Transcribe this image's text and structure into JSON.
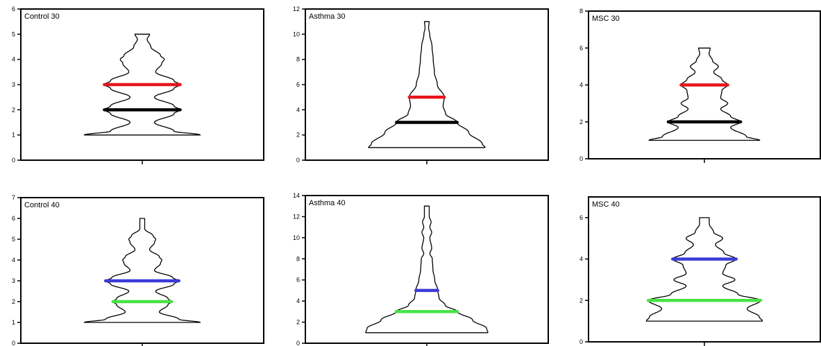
{
  "chart_data": [
    {
      "type": "violin",
      "title": "Control 30",
      "ylim": [
        0,
        6
      ],
      "yticks": [
        0,
        1,
        2,
        3,
        4,
        5,
        6
      ],
      "violin": {
        "min": 1,
        "max": 5,
        "width_profile": [
          [
            1,
            0.95
          ],
          [
            1.15,
            0.52
          ],
          [
            1.5,
            0.2
          ],
          [
            1.85,
            0.52
          ],
          [
            2.0,
            0.62
          ],
          [
            2.15,
            0.52
          ],
          [
            2.5,
            0.2
          ],
          [
            2.85,
            0.52
          ],
          [
            3.0,
            0.62
          ],
          [
            3.15,
            0.52
          ],
          [
            3.5,
            0.22
          ],
          [
            3.85,
            0.32
          ],
          [
            4.0,
            0.36
          ],
          [
            4.15,
            0.3
          ],
          [
            4.5,
            0.14
          ],
          [
            4.8,
            0.08
          ],
          [
            5.0,
            0.12
          ]
        ]
      },
      "lines": [
        {
          "value": 3,
          "color": "#e8141b"
        },
        {
          "value": 2,
          "color": "#000000"
        }
      ]
    },
    {
      "type": "violin",
      "title": "Asthma 30",
      "ylim": [
        0,
        12
      ],
      "yticks": [
        0,
        2,
        4,
        6,
        8,
        10,
        12
      ],
      "violin": {
        "min": 1,
        "max": 11,
        "width_profile": [
          [
            1,
            1.0
          ],
          [
            1.3,
            0.95
          ],
          [
            2.2,
            0.72
          ],
          [
            3.0,
            0.52
          ],
          [
            3.7,
            0.32
          ],
          [
            4.3,
            0.28
          ],
          [
            5.0,
            0.3
          ],
          [
            6.0,
            0.18
          ],
          [
            7.0,
            0.13
          ],
          [
            8.0,
            0.11
          ],
          [
            9.0,
            0.09
          ],
          [
            10.0,
            0.05
          ],
          [
            10.5,
            0.03
          ],
          [
            11.0,
            0.04
          ]
        ]
      },
      "lines": [
        {
          "value": 5,
          "color": "#e8141b"
        },
        {
          "value": 3,
          "color": "#000000"
        }
      ]
    },
    {
      "type": "violin",
      "title": "MSC 30",
      "ylim": [
        0,
        8
      ],
      "yticks": [
        0,
        2,
        4,
        6,
        8
      ],
      "violin": {
        "min": 1,
        "max": 6,
        "width_profile": [
          [
            1,
            0.95
          ],
          [
            1.2,
            0.72
          ],
          [
            1.7,
            0.45
          ],
          [
            2.0,
            0.62
          ],
          [
            2.3,
            0.45
          ],
          [
            2.7,
            0.28
          ],
          [
            3.0,
            0.4
          ],
          [
            3.3,
            0.28
          ],
          [
            3.7,
            0.3
          ],
          [
            4.0,
            0.4
          ],
          [
            4.3,
            0.3
          ],
          [
            4.7,
            0.16
          ],
          [
            5.0,
            0.24
          ],
          [
            5.3,
            0.14
          ],
          [
            5.7,
            0.08
          ],
          [
            6.0,
            0.1
          ]
        ]
      },
      "lines": [
        {
          "value": 4,
          "color": "#e8141b"
        },
        {
          "value": 2,
          "color": "#000000"
        }
      ]
    },
    {
      "type": "violin",
      "title": "Control 40",
      "ylim": [
        0,
        7
      ],
      "yticks": [
        0,
        1,
        2,
        3,
        4,
        5,
        6,
        7
      ],
      "violin": {
        "min": 1,
        "max": 6,
        "width_profile": [
          [
            1,
            0.95
          ],
          [
            1.15,
            0.6
          ],
          [
            1.5,
            0.28
          ],
          [
            1.85,
            0.42
          ],
          [
            2.0,
            0.48
          ],
          [
            2.15,
            0.42
          ],
          [
            2.5,
            0.22
          ],
          [
            2.85,
            0.52
          ],
          [
            3.0,
            0.6
          ],
          [
            3.15,
            0.5
          ],
          [
            3.5,
            0.2
          ],
          [
            3.85,
            0.3
          ],
          [
            4.0,
            0.32
          ],
          [
            4.15,
            0.28
          ],
          [
            4.5,
            0.12
          ],
          [
            4.85,
            0.2
          ],
          [
            5.0,
            0.22
          ],
          [
            5.15,
            0.18
          ],
          [
            5.5,
            0.04
          ],
          [
            6.0,
            0.04
          ]
        ]
      },
      "lines": [
        {
          "value": 3,
          "color": "#3b3bd6"
        },
        {
          "value": 2,
          "color": "#46e346"
        }
      ]
    },
    {
      "type": "violin",
      "title": "Asthma 40",
      "ylim": [
        0,
        14
      ],
      "yticks": [
        0,
        2,
        4,
        6,
        8,
        10,
        12,
        14
      ],
      "violin": {
        "min": 1,
        "max": 13,
        "width_profile": [
          [
            1,
            1.0
          ],
          [
            1.4,
            0.98
          ],
          [
            2.2,
            0.75
          ],
          [
            3.0,
            0.5
          ],
          [
            3.6,
            0.3
          ],
          [
            4.3,
            0.2
          ],
          [
            5.0,
            0.18
          ],
          [
            6.0,
            0.13
          ],
          [
            7.0,
            0.1
          ],
          [
            8.0,
            0.09
          ],
          [
            8.5,
            0.05
          ],
          [
            9.0,
            0.08
          ],
          [
            10.0,
            0.05
          ],
          [
            10.5,
            0.08
          ],
          [
            11.0,
            0.05
          ],
          [
            11.5,
            0.07
          ],
          [
            12.0,
            0.04
          ],
          [
            13.0,
            0.04
          ]
        ]
      },
      "lines": [
        {
          "value": 5,
          "color": "#3b3bd6"
        },
        {
          "value": 3,
          "color": "#46e346"
        }
      ]
    },
    {
      "type": "violin",
      "title": "MSC 40",
      "ylim": [
        0,
        7
      ],
      "yticks": [
        0,
        2,
        4,
        6
      ],
      "violin": {
        "min": 1,
        "max": 6,
        "width_profile": [
          [
            1,
            0.95
          ],
          [
            1.2,
            0.9
          ],
          [
            1.6,
            0.7
          ],
          [
            2.0,
            0.92
          ],
          [
            2.3,
            0.55
          ],
          [
            2.7,
            0.3
          ],
          [
            3.0,
            0.5
          ],
          [
            3.3,
            0.3
          ],
          [
            3.7,
            0.35
          ],
          [
            4.0,
            0.52
          ],
          [
            4.3,
            0.32
          ],
          [
            4.7,
            0.18
          ],
          [
            5.0,
            0.3
          ],
          [
            5.3,
            0.15
          ],
          [
            5.7,
            0.08
          ],
          [
            6.0,
            0.08
          ]
        ]
      },
      "lines": [
        {
          "value": 4,
          "color": "#3b3bd6"
        },
        {
          "value": 2,
          "color": "#46e346"
        }
      ]
    }
  ]
}
